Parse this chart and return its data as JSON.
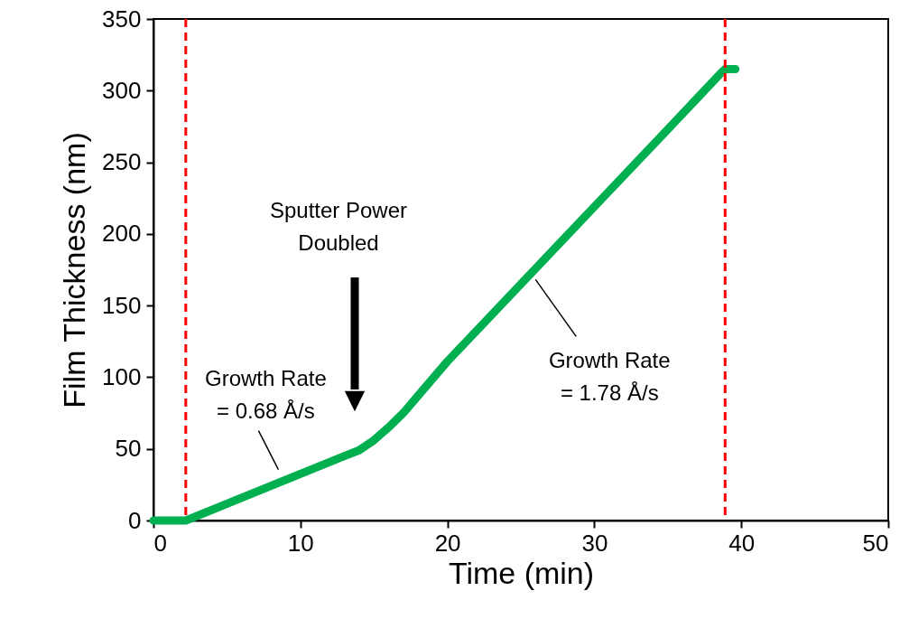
{
  "chart_data": {
    "type": "line",
    "xlabel": "Time (min)",
    "ylabel": "Film Thickness (nm)",
    "x": [
      0,
      2.2,
      13,
      14,
      15,
      16,
      17,
      18,
      19,
      20,
      30,
      35,
      38.5,
      38.9,
      39.6
    ],
    "series": [
      {
        "color": "#00b050",
        "values": [
          0,
          0,
          45,
          49,
          56,
          65,
          75,
          87,
          99,
          111,
          219,
          273,
          311,
          315,
          315
        ]
      }
    ],
    "xlim": [
      0,
      50
    ],
    "xticks": [
      0,
      10,
      20,
      30,
      40,
      50
    ],
    "ylim": [
      0,
      350
    ],
    "yticks": [
      0,
      50,
      100,
      150,
      200,
      250,
      300,
      350
    ],
    "ref_lines": [
      {
        "axis": "x",
        "value": 2.2,
        "color": "#ff0000",
        "line_style": "dashed"
      },
      {
        "axis": "x",
        "value": 38.9,
        "color": "#ff0000",
        "line_style": "dashed"
      }
    ],
    "annotations": [
      "Sputter Power\nDoubled",
      {
        "text": "Growth Rate\n= 0.68 Å/s",
        "x": 8.5,
        "y": 28
      },
      {
        "text": "Growth Rate\n= 1.78 Å/s",
        "x": 26,
        "y": 170
      }
    ],
    "grid": false,
    "marker": "none",
    "line_style": "solid"
  }
}
